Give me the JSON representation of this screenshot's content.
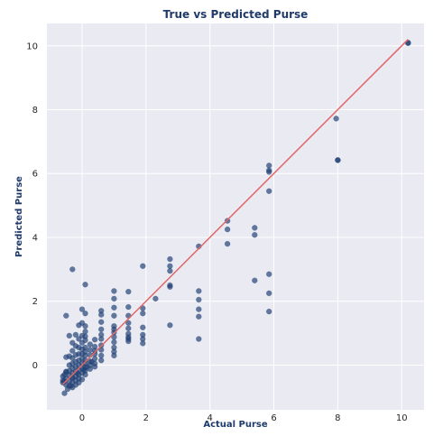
{
  "chart_data": {
    "type": "scatter",
    "title": "True vs Predicted Purse",
    "xlabel": "Actual Purse",
    "ylabel": "Predicted Purse",
    "xlim": [
      -1.1,
      10.7
    ],
    "ylim": [
      -1.4,
      10.7
    ],
    "xticks": [
      0,
      2,
      4,
      6,
      8,
      10
    ],
    "yticks": [
      0,
      2,
      4,
      6,
      8,
      10
    ],
    "grid": true,
    "colors": {
      "points": "#1f3f73",
      "reference_line": "#e06666",
      "background": "#eaeaf2",
      "title": "#1f3a6b"
    },
    "reference_line": {
      "x": [
        -0.6,
        10.2
      ],
      "y": [
        -0.6,
        10.2
      ]
    },
    "points": {
      "x": [
        10.2,
        10.2,
        8.0,
        8.0,
        7.95,
        5.85,
        5.85,
        5.85,
        5.85,
        5.85,
        5.85,
        5.85,
        5.4,
        5.4,
        5.4,
        4.55,
        4.55,
        4.55,
        3.65,
        3.65,
        3.65,
        3.65,
        3.65,
        3.65,
        2.75,
        2.75,
        2.75,
        2.75,
        2.75,
        2.75,
        2.3,
        1.9,
        1.9,
        1.9,
        1.9,
        1.9,
        1.9,
        1.9,
        1.45,
        1.45,
        1.45,
        1.45,
        1.45,
        1.45,
        1.45,
        1.45,
        1.45,
        1.0,
        1.0,
        1.0,
        1.0,
        1.0,
        1.0,
        1.0,
        1.0,
        1.0,
        1.0,
        1.0,
        1.0,
        0.6,
        0.6,
        0.6,
        0.6,
        0.6,
        0.6,
        0.6,
        0.6,
        0.6,
        0.6,
        0.4,
        0.4,
        0.4,
        0.4,
        0.4,
        0.4,
        0.4,
        0.25,
        0.25,
        0.25,
        0.25,
        0.25,
        0.25,
        0.1,
        0.1,
        0.1,
        0.1,
        0.1,
        0.1,
        0.1,
        0.1,
        0.1,
        0.1,
        0.1,
        0.1,
        0.1,
        0.1,
        0.0,
        0.0,
        0.0,
        0.0,
        0.0,
        0.0,
        0.0,
        0.0,
        0.0,
        0.0,
        0.0,
        -0.1,
        -0.1,
        -0.1,
        -0.1,
        -0.1,
        -0.1,
        -0.1,
        -0.1,
        -0.1,
        -0.1,
        -0.2,
        -0.2,
        -0.2,
        -0.2,
        -0.2,
        -0.2,
        -0.2,
        -0.2,
        -0.2,
        -0.3,
        -0.3,
        -0.3,
        -0.3,
        -0.3,
        -0.3,
        -0.3,
        -0.3,
        -0.3,
        -0.3,
        -0.4,
        -0.4,
        -0.4,
        -0.4,
        -0.4,
        -0.4,
        -0.4,
        -0.5,
        -0.5,
        -0.5,
        -0.5,
        -0.5,
        -0.55,
        -0.55,
        -0.55,
        -0.6,
        -0.6,
        -0.6,
        -0.35,
        -0.5,
        -0.45,
        -0.3,
        -0.15,
        0.05,
        0.15,
        0.3
      ],
      "y": [
        10.1,
        10.08,
        6.42,
        6.42,
        7.72,
        6.25,
        6.1,
        6.05,
        5.45,
        2.85,
        2.25,
        1.68,
        4.3,
        4.08,
        2.65,
        4.52,
        4.25,
        3.8,
        3.72,
        2.32,
        2.05,
        1.75,
        1.52,
        0.82,
        3.32,
        3.1,
        2.95,
        2.5,
        2.45,
        1.25,
        2.08,
        3.1,
        1.78,
        1.62,
        1.18,
        0.95,
        0.82,
        0.68,
        2.3,
        1.82,
        1.55,
        1.32,
        1.15,
        0.98,
        0.88,
        0.82,
        0.75,
        2.32,
        2.08,
        1.8,
        1.55,
        1.22,
        1.12,
        1.02,
        0.88,
        0.72,
        0.55,
        0.42,
        0.3,
        1.7,
        1.58,
        1.35,
        1.12,
        0.95,
        0.82,
        0.62,
        0.48,
        0.3,
        0.15,
        0.8,
        0.58,
        0.45,
        0.35,
        0.2,
        0.05,
        -0.05,
        0.65,
        0.48,
        0.32,
        0.12,
        0.0,
        -0.12,
        2.52,
        1.62,
        1.22,
        1.05,
        0.9,
        0.78,
        0.55,
        0.42,
        0.3,
        0.15,
        0.05,
        -0.08,
        -0.18,
        -0.3,
        1.75,
        1.32,
        0.92,
        0.7,
        0.5,
        0.35,
        0.2,
        0.05,
        -0.1,
        -0.25,
        -0.45,
        1.25,
        0.82,
        0.55,
        0.35,
        0.15,
        0.0,
        -0.15,
        -0.3,
        -0.42,
        -0.55,
        0.95,
        0.6,
        0.32,
        0.1,
        -0.05,
        -0.2,
        -0.35,
        -0.48,
        -0.62,
        3.0,
        0.7,
        0.45,
        0.22,
        0.05,
        -0.1,
        -0.25,
        -0.4,
        -0.55,
        -0.7,
        0.92,
        0.28,
        0.0,
        -0.18,
        -0.32,
        -0.5,
        -0.65,
        1.55,
        0.25,
        -0.22,
        -0.42,
        -0.62,
        -0.3,
        -0.5,
        -0.88,
        -0.35,
        -0.48,
        -0.55,
        -0.65,
        -0.2,
        -0.75,
        -0.4,
        -0.25,
        -0.15,
        -0.05,
        0.1
      ]
    }
  }
}
